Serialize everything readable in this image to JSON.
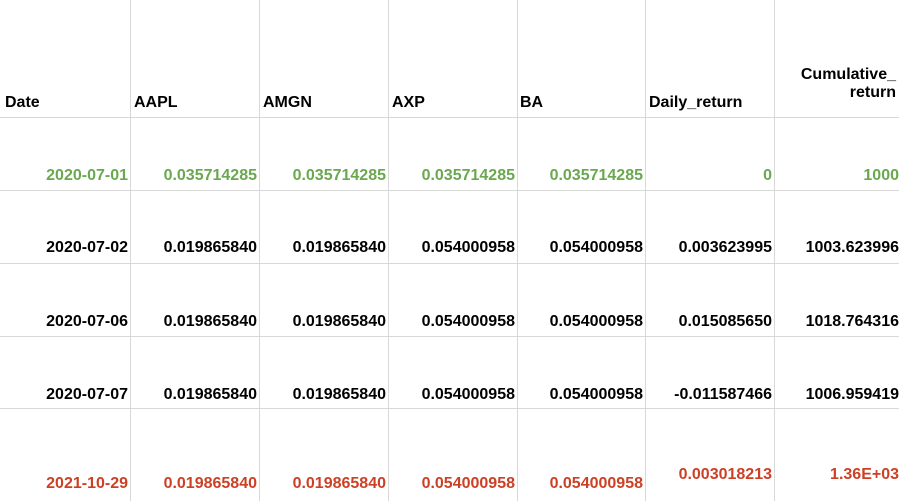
{
  "columns": [
    "Date",
    "AAPL",
    "AMGN",
    "AXP",
    "BA",
    "Daily_return",
    "Cumulative_return"
  ],
  "header_cumulative_lines": [
    "Cumulative_",
    "return"
  ],
  "rows": [
    {
      "style": "green",
      "cells": [
        "2020-07-01",
        "0.035714285",
        "0.035714285",
        "0.035714285",
        "0.035714285",
        "0",
        "1000"
      ]
    },
    {
      "style": "black",
      "cells": [
        "2020-07-02",
        "0.019865840",
        "0.019865840",
        "0.054000958",
        "0.054000958",
        "0.003623995",
        "1003.623996"
      ]
    },
    {
      "style": "black",
      "cells": [
        "2020-07-06",
        "0.019865840",
        "0.019865840",
        "0.054000958",
        "0.054000958",
        "0.015085650",
        "1018.764316"
      ]
    },
    {
      "style": "black",
      "cells": [
        "2020-07-07",
        "0.019865840",
        "0.019865840",
        "0.054000958",
        "0.054000958",
        "-0.011587466",
        "1006.959419"
      ]
    },
    {
      "style": "red",
      "cells": [
        "2021-10-29",
        "0.019865840",
        "0.019865840",
        "0.054000958",
        "0.054000958",
        "0.003018213",
        "1.36E+03"
      ]
    }
  ],
  "colors": {
    "green": "#6aa84f",
    "red": "#cc4125",
    "grid": "#d8d8d8"
  }
}
